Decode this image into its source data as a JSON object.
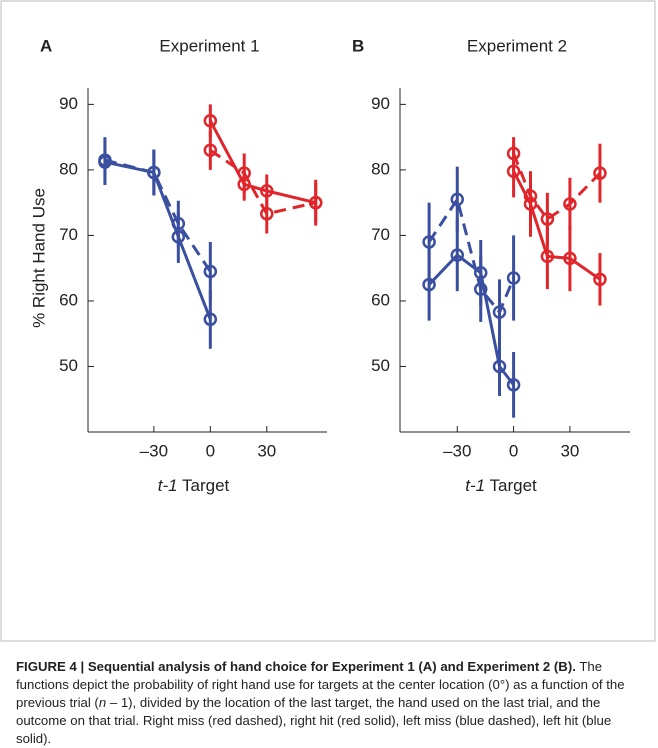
{
  "chart_data": [
    {
      "type": "line",
      "panel": "A",
      "title": "Experiment 1",
      "y_label": "% Right Hand Use",
      "x_label": {
        "italic": "t-1",
        "text": "Target"
      },
      "xlim": [
        -65,
        62
      ],
      "ylim": [
        40,
        92.5
      ],
      "xticks": [
        {
          "value": -30,
          "label": "–30"
        },
        0,
        30
      ],
      "yticks": [
        50,
        60,
        70,
        80,
        90
      ],
      "series": [
        {
          "color": "#3a4fa0",
          "dashed": false,
          "x": [
            -56,
            -30,
            -17,
            0
          ],
          "values": [
            81.2,
            79.6,
            69.8,
            57.2
          ],
          "errors": [
            3.5,
            3.5,
            4,
            4.5
          ]
        },
        {
          "color": "#3a4fa0",
          "dashed": true,
          "x": [
            -56,
            -30,
            -17,
            0
          ],
          "values": [
            81.5,
            79.6,
            71.8,
            64.5
          ],
          "errors": [
            3.5,
            3.5,
            3.5,
            4.5
          ]
        },
        {
          "color": "#e0262b",
          "dashed": false,
          "x": [
            0,
            18,
            30,
            56
          ],
          "values": [
            87.5,
            77.8,
            76.8,
            75
          ],
          "errors": [
            2.5,
            2.5,
            2.5,
            3.5
          ]
        },
        {
          "color": "#e0262b",
          "dashed": true,
          "x": [
            0,
            18,
            30,
            56
          ],
          "values": [
            83,
            79.5,
            73.3,
            75
          ],
          "errors": [
            3,
            3,
            3,
            3
          ]
        }
      ]
    },
    {
      "type": "line",
      "panel": "B",
      "title": "Experiment 2",
      "x_label": {
        "italic": "t-1",
        "text": "Target"
      },
      "xlim": [
        -60.5,
        62
      ],
      "ylim": [
        40,
        92.5
      ],
      "xticks": [
        {
          "value": -30,
          "label": "–30"
        },
        0,
        30
      ],
      "yticks": [
        50,
        60,
        70,
        80,
        90
      ],
      "series": [
        {
          "color": "#3a4fa0",
          "dashed": false,
          "x": [
            -45,
            -30,
            -17.5,
            -7.5,
            0
          ],
          "values": [
            62.5,
            67,
            64.3,
            50,
            47.2
          ],
          "errors": [
            5.5,
            5.5,
            5,
            4.5,
            5
          ]
        },
        {
          "color": "#3a4fa0",
          "dashed": true,
          "x": [
            -45,
            -30,
            -17.5,
            -7.5,
            0
          ],
          "values": [
            69,
            75.5,
            61.8,
            58.3,
            63.5
          ],
          "errors": [
            6,
            5,
            5,
            5,
            6.5
          ]
        },
        {
          "color": "#e0262b",
          "dashed": false,
          "x": [
            0,
            9,
            18,
            30,
            46
          ],
          "values": [
            79.8,
            74.8,
            66.8,
            66.5,
            63.3
          ],
          "errors": [
            4,
            5,
            5,
            5,
            4
          ]
        },
        {
          "color": "#e0262b",
          "dashed": true,
          "x": [
            0,
            9,
            18,
            30,
            46
          ],
          "values": [
            82.5,
            76,
            72.5,
            74.8,
            79.5
          ],
          "errors": [
            2.5,
            3.5,
            4,
            4,
            4.5
          ]
        }
      ]
    }
  ],
  "caption": {
    "heading": "FIGURE 4 | Sequential analysis of hand choice for Experiment 1 (A) and Experiment 2 (B).",
    "body": [
      " The functions depict the probability of right hand use for targets at the center location (0°) as a function of the previous trial (",
      "n",
      " – 1), divided by the location of the last target, the hand used on the last trial, and the outcome on that trial. Right miss (red dashed), right hit (red solid), left miss (blue dashed), left hit (blue solid)."
    ]
  }
}
